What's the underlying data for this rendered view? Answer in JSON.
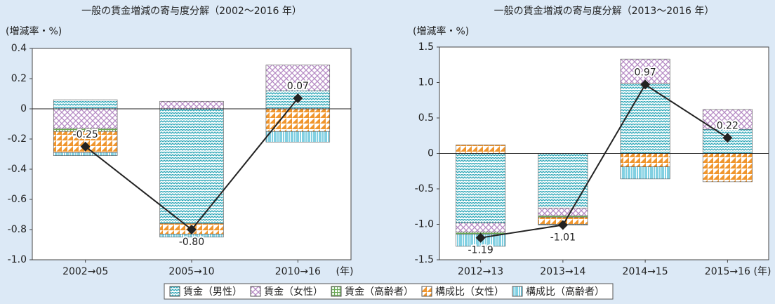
{
  "chart_data": [
    {
      "type": "bar",
      "title": "一般の賃金増減の寄与度分解（2002～2016 年）",
      "ylabel": "(増減率・%)",
      "x_unit": "(年)",
      "categories": [
        "2002→05",
        "2005→10",
        "2010→16"
      ],
      "ylim": [
        -1.0,
        0.4
      ],
      "yticks": [
        {
          "value": -1.0,
          "label": "-1.0"
        },
        -0.8,
        -0.6,
        -0.4,
        -0.2,
        0,
        0.2,
        0.4
      ],
      "series": [
        {
          "name": "賃金（男性）",
          "color": "#2fa7b8",
          "values": [
            0.06,
            -0.76,
            0.12
          ]
        },
        {
          "name": "賃金（女性）",
          "color": "#b58ac4",
          "values": [
            -0.13,
            0.05,
            0.17
          ]
        },
        {
          "name": "賃金（高齢者）",
          "color": "#6aaa55",
          "values": [
            -0.02,
            0,
            0
          ]
        },
        {
          "name": "構成比（女性）",
          "color": "#f0962e",
          "values": [
            -0.14,
            -0.07,
            -0.15
          ]
        },
        {
          "name": "構成比（高齢者）",
          "color": "#3fb6d2",
          "values": [
            -0.02,
            -0.02,
            -0.07
          ]
        }
      ],
      "line": {
        "color": "#222222",
        "values": [
          -0.25,
          -0.8,
          0.07
        ],
        "value_labels": [
          "-0.25",
          "-0.80",
          "0.07"
        ]
      }
    },
    {
      "type": "bar",
      "title": "一般の賃金増減の寄与度分解（2013～2016 年）",
      "ylabel": "(増減率・%)",
      "x_unit": "(年)",
      "categories": [
        "2012→13",
        "2013→14",
        "2014→15",
        "2015→16"
      ],
      "ylim": [
        -1.5,
        1.5
      ],
      "yticks": [
        -1.5,
        {
          "value": -1.0,
          "label": "-1.0"
        },
        -0.5,
        0,
        0.5,
        {
          "value": 1.0,
          "label": "1.0"
        },
        1.5
      ],
      "series": [
        {
          "color": "#2fa7b8",
          "values": [
            -0.98,
            -0.77,
            0.99,
            0.34
          ]
        },
        {
          "color": "#b58ac4",
          "values": [
            -0.13,
            -0.11,
            0.34,
            0.28
          ]
        },
        {
          "color": "#6aaa55",
          "values": [
            -0.03,
            -0.02,
            0,
            0
          ]
        },
        {
          "color": "#f0962e",
          "values": [
            0.12,
            -0.1,
            -0.19,
            -0.4
          ]
        },
        {
          "color": "#3fb6d2",
          "values": [
            -0.17,
            -0.01,
            -0.17,
            0
          ]
        }
      ],
      "line": {
        "color": "#222222",
        "values": [
          -1.19,
          -1.01,
          0.97,
          0.22
        ],
        "value_labels": [
          "-1.19",
          "-1.01",
          "0.97",
          "0.22"
        ]
      }
    }
  ]
}
